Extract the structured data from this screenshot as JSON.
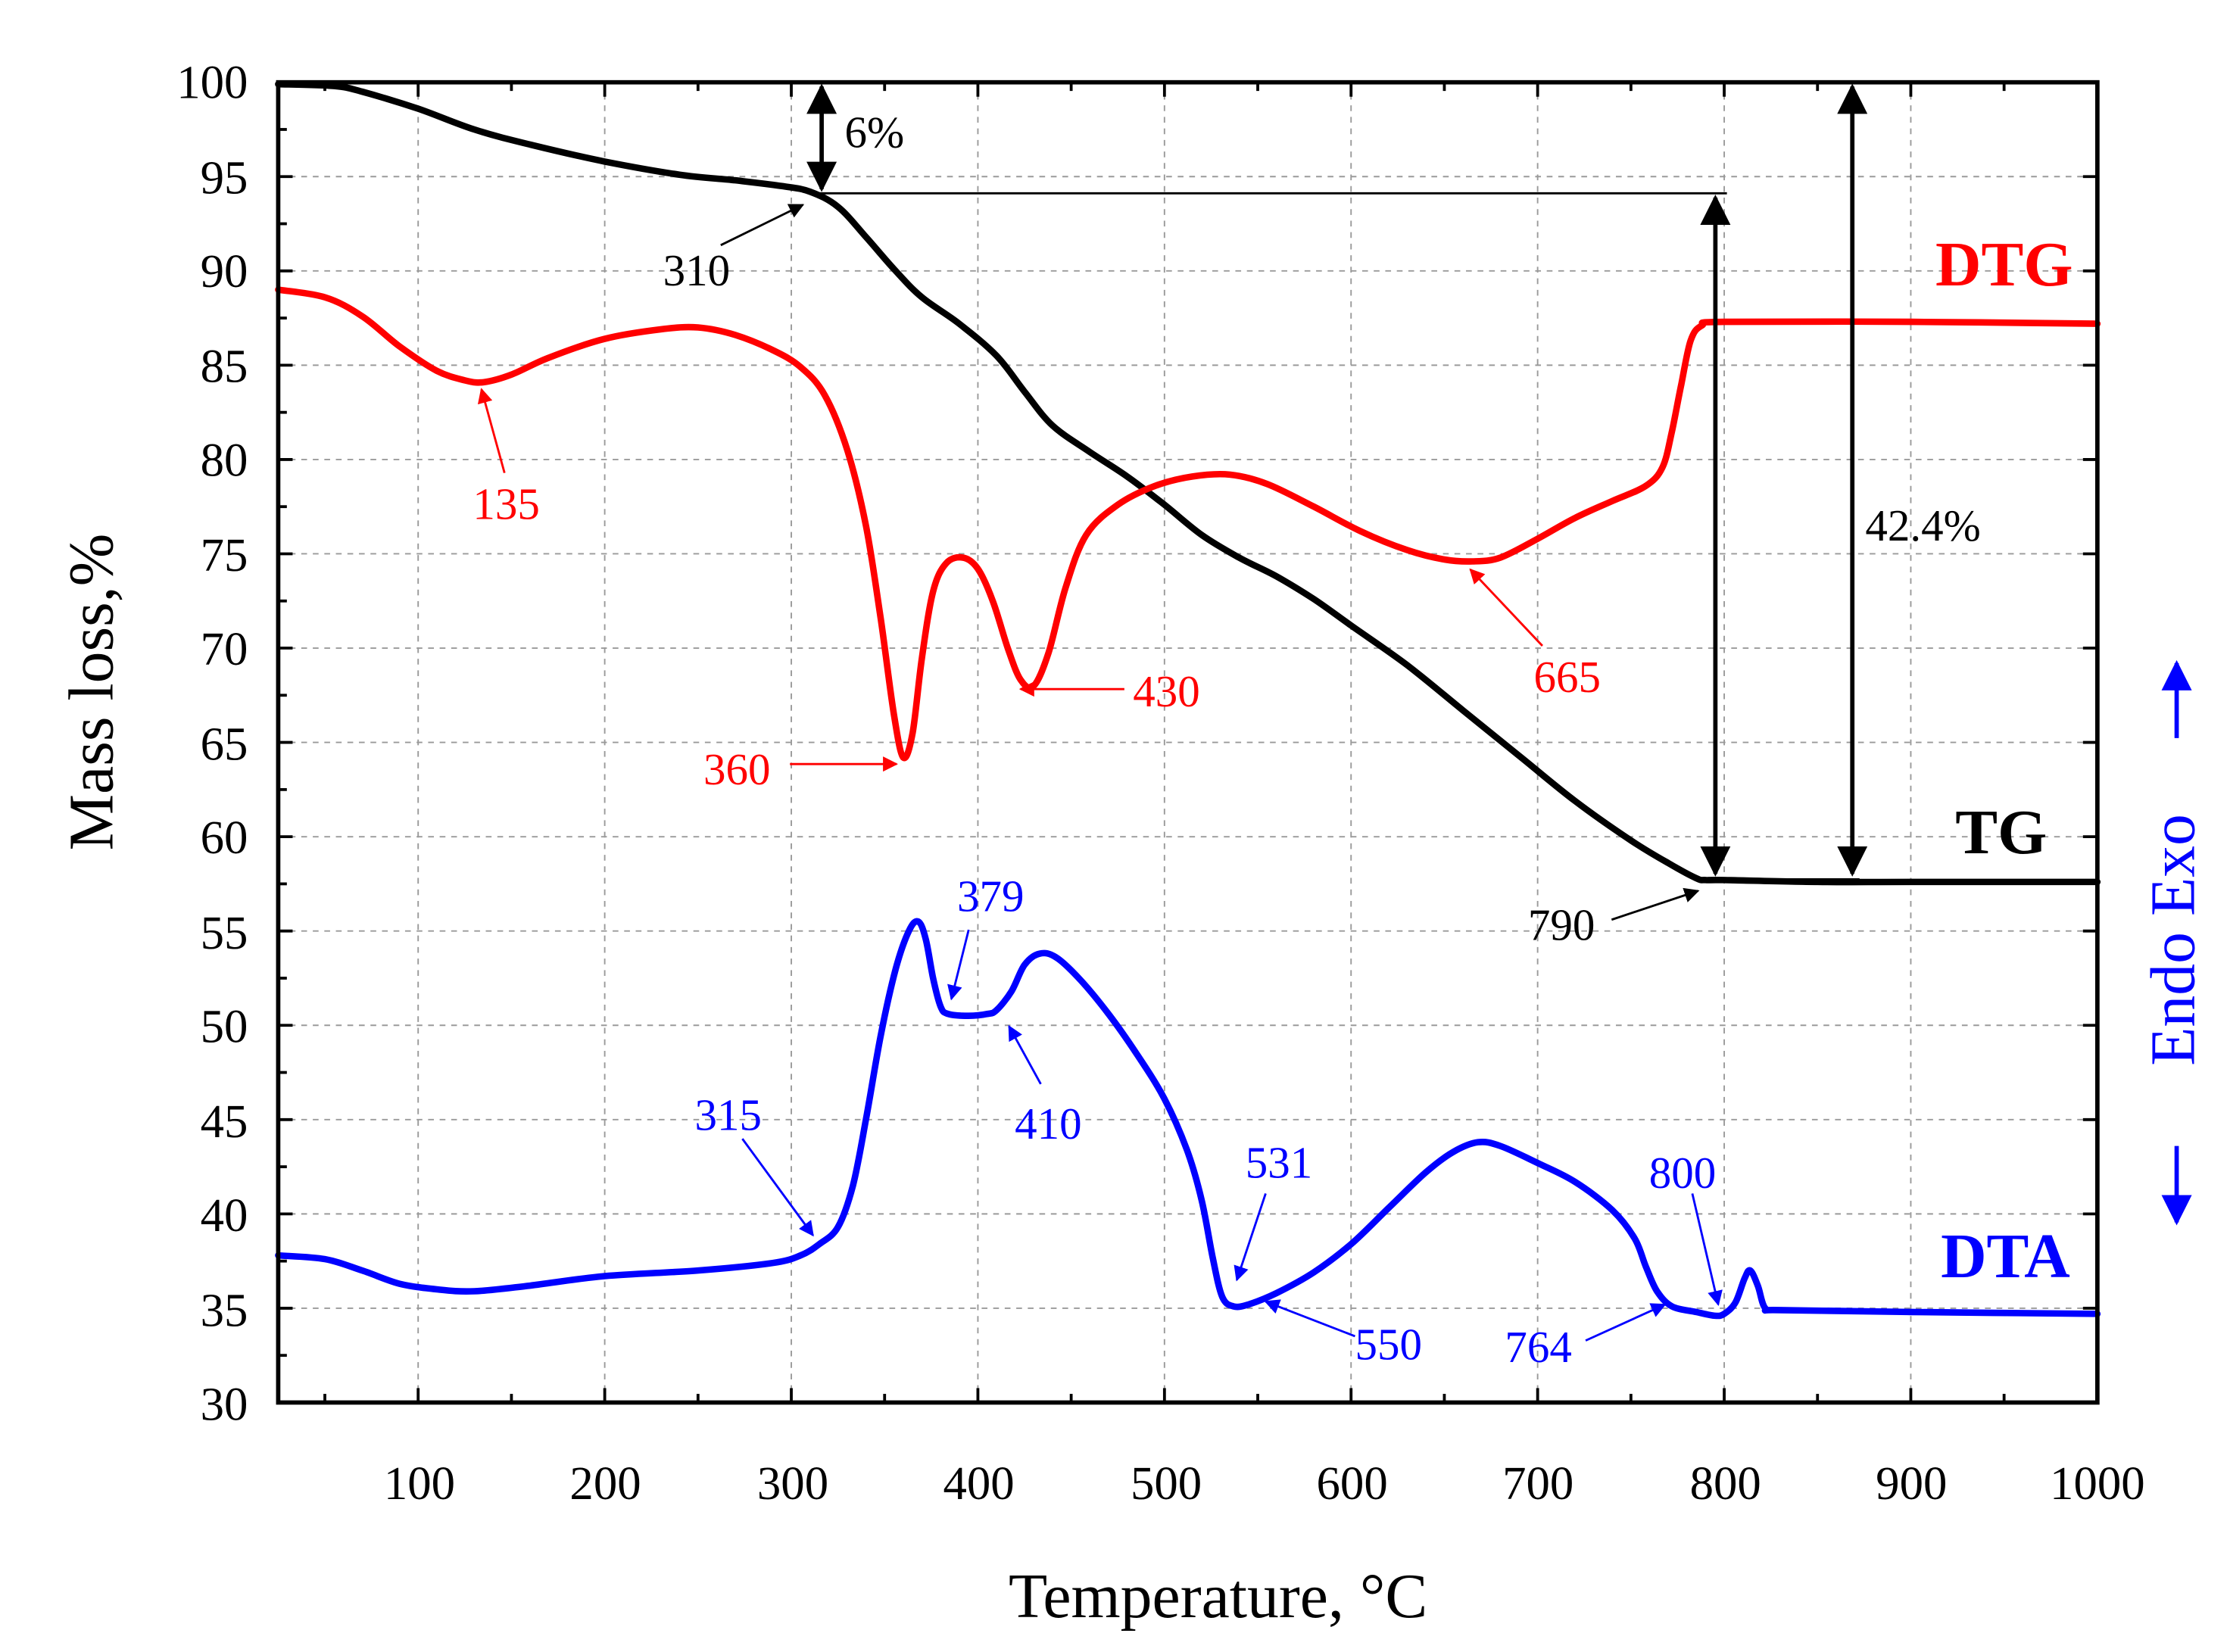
{
  "chart_data": {
    "type": "line",
    "title": "",
    "xlabel": "Temperature, °C",
    "ylabel": "Mass loss,%",
    "y2label": "Endo Exo",
    "xlim": [
      25,
      1000
    ],
    "ylim": [
      30,
      100
    ],
    "x_ticks": [
      100,
      200,
      300,
      400,
      500,
      600,
      700,
      800,
      900,
      1000
    ],
    "x_tick_labels": [
      "100",
      "200",
      "300",
      "400",
      "500",
      "600",
      "700",
      "800",
      "900",
      "1000"
    ],
    "y_ticks": [
      30,
      35,
      40,
      45,
      50,
      55,
      60,
      65,
      70,
      75,
      80,
      85,
      90,
      95,
      100
    ],
    "y_tick_labels": [
      "30",
      "35",
      "40",
      "45",
      "50",
      "55",
      "60",
      "65",
      "70",
      "75",
      "80",
      "85",
      "90",
      "95",
      "100"
    ],
    "grid": true,
    "series": [
      {
        "name": "TG",
        "color": "#000000",
        "points": [
          [
            25,
            99.9
          ],
          [
            55,
            99.8
          ],
          [
            70,
            99.5
          ],
          [
            100,
            98.6
          ],
          [
            130,
            97.5
          ],
          [
            160,
            96.7
          ],
          [
            200,
            95.8
          ],
          [
            240,
            95.1
          ],
          [
            270,
            94.8
          ],
          [
            295,
            94.5
          ],
          [
            310,
            94.2
          ],
          [
            325,
            93.4
          ],
          [
            340,
            91.8
          ],
          [
            355,
            90.1
          ],
          [
            370,
            88.6
          ],
          [
            390,
            87.2
          ],
          [
            410,
            85.5
          ],
          [
            425,
            83.6
          ],
          [
            440,
            81.8
          ],
          [
            460,
            80.4
          ],
          [
            480,
            79.1
          ],
          [
            500,
            77.6
          ],
          [
            520,
            76.0
          ],
          [
            540,
            74.8
          ],
          [
            560,
            73.8
          ],
          [
            580,
            72.6
          ],
          [
            600,
            71.2
          ],
          [
            630,
            69.1
          ],
          [
            660,
            66.7
          ],
          [
            690,
            64.3
          ],
          [
            720,
            61.9
          ],
          [
            750,
            59.8
          ],
          [
            770,
            58.6
          ],
          [
            785,
            57.8
          ],
          [
            790,
            57.7
          ],
          [
            800,
            57.7
          ],
          [
            850,
            57.6
          ],
          [
            900,
            57.6
          ],
          [
            1000,
            57.6
          ]
        ]
      },
      {
        "name": "DTG",
        "color": "#ff0000",
        "points": [
          [
            25,
            89.0
          ],
          [
            50,
            88.6
          ],
          [
            70,
            87.6
          ],
          [
            90,
            86.0
          ],
          [
            110,
            84.7
          ],
          [
            125,
            84.2
          ],
          [
            135,
            84.1
          ],
          [
            150,
            84.5
          ],
          [
            170,
            85.4
          ],
          [
            200,
            86.4
          ],
          [
            230,
            86.9
          ],
          [
            250,
            87.0
          ],
          [
            270,
            86.6
          ],
          [
            290,
            85.8
          ],
          [
            305,
            84.9
          ],
          [
            318,
            83.4
          ],
          [
            330,
            80.5
          ],
          [
            340,
            76.5
          ],
          [
            348,
            71.5
          ],
          [
            355,
            66.5
          ],
          [
            360,
            64.2
          ],
          [
            365,
            65.5
          ],
          [
            370,
            69.5
          ],
          [
            376,
            73.0
          ],
          [
            383,
            74.5
          ],
          [
            392,
            74.8
          ],
          [
            400,
            74.2
          ],
          [
            408,
            72.5
          ],
          [
            416,
            70.0
          ],
          [
            423,
            68.3
          ],
          [
            430,
            68.0
          ],
          [
            438,
            69.8
          ],
          [
            447,
            73.2
          ],
          [
            458,
            76.0
          ],
          [
            475,
            77.6
          ],
          [
            495,
            78.6
          ],
          [
            515,
            79.1
          ],
          [
            535,
            79.2
          ],
          [
            555,
            78.7
          ],
          [
            580,
            77.5
          ],
          [
            605,
            76.2
          ],
          [
            630,
            75.2
          ],
          [
            650,
            74.7
          ],
          [
            665,
            74.6
          ],
          [
            680,
            74.8
          ],
          [
            700,
            75.8
          ],
          [
            720,
            76.9
          ],
          [
            740,
            77.8
          ],
          [
            758,
            78.6
          ],
          [
            767,
            79.6
          ],
          [
            772,
            81.5
          ],
          [
            777,
            84.0
          ],
          [
            782,
            86.3
          ],
          [
            788,
            87.1
          ],
          [
            800,
            87.3
          ],
          [
            900,
            87.3
          ],
          [
            1000,
            87.2
          ]
        ]
      },
      {
        "name": "DTA",
        "color": "#0000ff",
        "points": [
          [
            25,
            37.8
          ],
          [
            50,
            37.6
          ],
          [
            70,
            37.0
          ],
          [
            90,
            36.3
          ],
          [
            110,
            36.0
          ],
          [
            130,
            35.9
          ],
          [
            160,
            36.2
          ],
          [
            200,
            36.7
          ],
          [
            250,
            37.0
          ],
          [
            290,
            37.4
          ],
          [
            305,
            37.8
          ],
          [
            315,
            38.4
          ],
          [
            325,
            39.3
          ],
          [
            333,
            41.5
          ],
          [
            340,
            45.0
          ],
          [
            348,
            49.5
          ],
          [
            356,
            53.0
          ],
          [
            363,
            55.0
          ],
          [
            368,
            55.5
          ],
          [
            372,
            54.6
          ],
          [
            376,
            52.5
          ],
          [
            380,
            51.0
          ],
          [
            384,
            50.6
          ],
          [
            395,
            50.5
          ],
          [
            405,
            50.6
          ],
          [
            410,
            50.8
          ],
          [
            418,
            51.8
          ],
          [
            425,
            53.2
          ],
          [
            433,
            53.8
          ],
          [
            442,
            53.6
          ],
          [
            455,
            52.4
          ],
          [
            470,
            50.6
          ],
          [
            485,
            48.5
          ],
          [
            500,
            46.1
          ],
          [
            512,
            43.4
          ],
          [
            520,
            40.7
          ],
          [
            526,
            37.6
          ],
          [
            531,
            35.6
          ],
          [
            537,
            35.1
          ],
          [
            545,
            35.2
          ],
          [
            560,
            35.8
          ],
          [
            580,
            36.9
          ],
          [
            600,
            38.4
          ],
          [
            620,
            40.3
          ],
          [
            640,
            42.2
          ],
          [
            655,
            43.3
          ],
          [
            668,
            43.8
          ],
          [
            680,
            43.6
          ],
          [
            700,
            42.7
          ],
          [
            720,
            41.7
          ],
          [
            740,
            40.2
          ],
          [
            752,
            38.7
          ],
          [
            758,
            37.2
          ],
          [
            764,
            35.9
          ],
          [
            772,
            35.1
          ],
          [
            785,
            34.8
          ],
          [
            795,
            34.6
          ],
          [
            800,
            34.7
          ],
          [
            806,
            35.3
          ],
          [
            811,
            36.6
          ],
          [
            814,
            37.0
          ],
          [
            818,
            36.2
          ],
          [
            822,
            35.0
          ],
          [
            830,
            34.9
          ],
          [
            900,
            34.8
          ],
          [
            1000,
            34.7
          ]
        ]
      }
    ],
    "labels": {
      "dtg": "DTG",
      "tg": "TG",
      "dta": "DTA"
    },
    "annotations": [
      {
        "text": "6%",
        "color": "#000000"
      },
      {
        "text": "310",
        "color": "#000000"
      },
      {
        "text": "42.4%",
        "color": "#000000"
      },
      {
        "text": "790",
        "color": "#000000"
      },
      {
        "text": "135",
        "color": "#ff0000"
      },
      {
        "text": "360",
        "color": "#ff0000"
      },
      {
        "text": "430",
        "color": "#ff0000"
      },
      {
        "text": "665",
        "color": "#ff0000"
      },
      {
        "text": "379",
        "color": "#0000ff"
      },
      {
        "text": "410",
        "color": "#0000ff"
      },
      {
        "text": "315",
        "color": "#0000ff"
      },
      {
        "text": "531",
        "color": "#0000ff"
      },
      {
        "text": "550",
        "color": "#0000ff"
      },
      {
        "text": "764",
        "color": "#0000ff"
      },
      {
        "text": "800",
        "color": "#0000ff"
      }
    ]
  }
}
